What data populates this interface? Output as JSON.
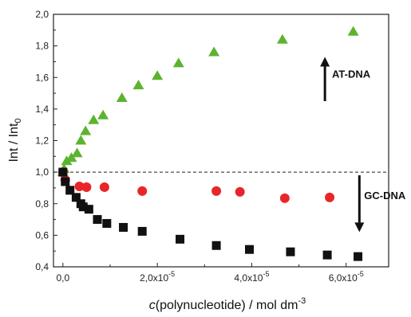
{
  "chart_data": {
    "type": "scatter",
    "title": "",
    "xlabel": {
      "italic": "c",
      "rest": "(polynucleotide) / mol dm",
      "sup": "-3"
    },
    "ylabel": {
      "main": "Int / Int",
      "sub": "0"
    },
    "xlim": [
      -2e-06,
      6.9e-05
    ],
    "ylim": [
      0.4,
      2.0
    ],
    "x_ticks": [
      {
        "value": 0,
        "label": "0,0"
      },
      {
        "value": 2e-05,
        "mant": "2,0x10",
        "exp": "-5"
      },
      {
        "value": 4e-05,
        "mant": "4,0x10",
        "exp": "-5"
      },
      {
        "value": 6e-05,
        "mant": "6,0x10",
        "exp": "-5"
      }
    ],
    "y_ticks": [
      {
        "value": 0.4,
        "label": "0,4"
      },
      {
        "value": 0.6,
        "label": "0,6"
      },
      {
        "value": 0.8,
        "label": "0,8"
      },
      {
        "value": 1.0,
        "label": "1,0"
      },
      {
        "value": 1.2,
        "label": "1,2"
      },
      {
        "value": 1.4,
        "label": "1,4"
      },
      {
        "value": 1.6,
        "label": "1,6"
      },
      {
        "value": 1.8,
        "label": "1,8"
      },
      {
        "value": 2.0,
        "label": "2,0"
      }
    ],
    "reference_line": {
      "y": 1.0,
      "style": "dashed"
    },
    "grid": false,
    "series": [
      {
        "marker": "triangle",
        "color": "#5cb330",
        "x": [
          0.0,
          2.5e-07,
          8e-07,
          1.8e-06,
          3e-06,
          3.8e-06,
          4.8e-06,
          6.5e-06,
          8.5e-06,
          1.25e-05,
          1.6e-05,
          2e-05,
          2.45e-05,
          3.2e-05,
          4.65e-05,
          6.15e-05
        ],
        "y": [
          1.0,
          1.02,
          1.07,
          1.09,
          1.12,
          1.2,
          1.26,
          1.33,
          1.36,
          1.47,
          1.55,
          1.61,
          1.69,
          1.76,
          1.84,
          1.89
        ]
      },
      {
        "marker": "circle",
        "color": "#e8262a",
        "x": [
          0.0,
          5e-07,
          3.5e-06,
          5e-06,
          8.8e-06,
          1.68e-05,
          3.25e-05,
          3.75e-05,
          4.7e-05,
          5.65e-05
        ],
        "y": [
          1.0,
          0.95,
          0.91,
          0.905,
          0.905,
          0.88,
          0.88,
          0.875,
          0.835,
          0.84
        ]
      },
      {
        "marker": "square",
        "color": "#111111",
        "x": [
          0.0,
          5e-07,
          1.5e-06,
          2.8e-06,
          3.8e-06,
          4.3e-06,
          5.5e-06,
          7.3e-06,
          9.3e-06,
          1.28e-05,
          1.68e-05,
          2.48e-05,
          3.25e-05,
          3.95e-05,
          4.82e-05,
          5.6e-05,
          6.25e-05
        ],
        "y": [
          1.0,
          0.94,
          0.885,
          0.84,
          0.8,
          0.78,
          0.765,
          0.7,
          0.675,
          0.65,
          0.625,
          0.575,
          0.535,
          0.51,
          0.495,
          0.475,
          0.465
        ]
      }
    ],
    "annotations": [
      {
        "text": "AT-DNA",
        "arrow": "up",
        "arrow_x": 5.55e-05,
        "arrow_y": [
          1.45,
          1.73
        ],
        "label_x": 5.7e-05,
        "label_y": 1.6
      },
      {
        "text": "GC-DNA",
        "arrow": "down",
        "arrow_x": 6.28e-05,
        "arrow_y": [
          0.98,
          0.62
        ],
        "label_x": 6.38e-05,
        "label_y": 0.83
      }
    ]
  }
}
